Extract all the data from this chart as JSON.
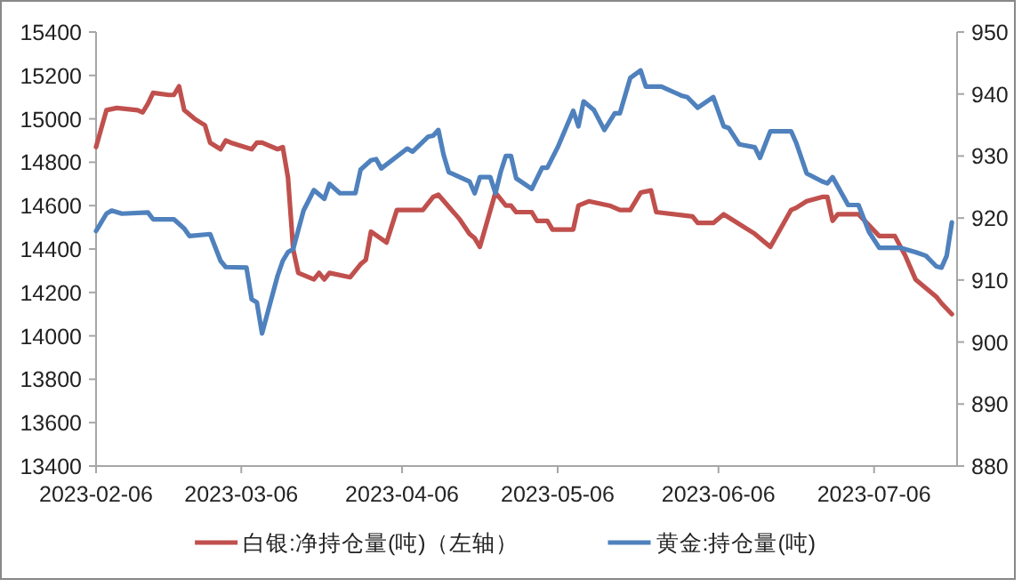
{
  "chart_data": {
    "type": "line",
    "legend": "bottom",
    "grid": false,
    "xlim": [
      "2023-02-06",
      "2023-07-22"
    ],
    "xticks": [
      "2023-02-06",
      "2023-03-06",
      "2023-04-06",
      "2023-05-06",
      "2023-06-06",
      "2023-07-06"
    ],
    "ylim": [
      13400,
      15400
    ],
    "yticks": [
      13400,
      13600,
      13800,
      14000,
      14200,
      14400,
      14600,
      14800,
      15000,
      15200,
      15400
    ],
    "y2lim": [
      880,
      950
    ],
    "y2ticks": [
      880,
      890,
      900,
      910,
      920,
      930,
      940,
      950
    ],
    "series": [
      {
        "name": "白银:净持仓量(吨)（左轴）",
        "color": "#c0504d",
        "x": [
          "2023-02-06",
          "2023-02-08",
          "2023-02-10",
          "2023-02-14",
          "2023-02-15",
          "2023-02-16",
          "2023-02-17",
          "2023-02-20",
          "2023-02-21",
          "2023-02-22",
          "2023-02-23",
          "2023-02-25",
          "2023-02-27",
          "2023-02-28",
          "2023-03-02",
          "2023-03-03",
          "2023-03-04",
          "2023-03-08",
          "2023-03-09",
          "2023-03-10",
          "2023-03-13",
          "2023-03-14",
          "2023-03-15",
          "2023-03-16",
          "2023-03-17",
          "2023-03-20",
          "2023-03-21",
          "2023-03-22",
          "2023-03-23",
          "2023-03-27",
          "2023-03-29",
          "2023-03-30",
          "2023-03-31",
          "2023-04-03",
          "2023-04-05",
          "2023-04-10",
          "2023-04-12",
          "2023-04-13",
          "2023-04-17",
          "2023-04-19",
          "2023-04-20",
          "2023-04-21",
          "2023-04-24",
          "2023-04-26",
          "2023-04-27",
          "2023-04-28",
          "2023-05-01",
          "2023-05-02",
          "2023-05-04",
          "2023-05-05",
          "2023-05-09",
          "2023-05-10",
          "2023-05-12",
          "2023-05-16",
          "2023-05-18",
          "2023-05-20",
          "2023-05-22",
          "2023-05-24",
          "2023-05-25",
          "2023-06-01",
          "2023-06-02",
          "2023-06-05",
          "2023-06-07",
          "2023-06-09",
          "2023-06-13",
          "2023-06-15",
          "2023-06-16",
          "2023-06-20",
          "2023-06-21",
          "2023-06-23",
          "2023-06-26",
          "2023-06-27",
          "2023-06-28",
          "2023-06-29",
          "2023-07-03",
          "2023-07-05",
          "2023-07-07",
          "2023-07-10",
          "2023-07-12",
          "2023-07-14",
          "2023-07-16",
          "2023-07-18",
          "2023-07-19",
          "2023-07-21"
        ],
        "values": [
          14870,
          15040,
          15050,
          15040,
          15030,
          15070,
          15120,
          15110,
          15110,
          15150,
          15040,
          15000,
          14970,
          14890,
          14860,
          14900,
          14890,
          14860,
          14890,
          14890,
          14860,
          14870,
          14730,
          14400,
          14290,
          14260,
          14290,
          14260,
          14290,
          14270,
          14330,
          14350,
          14480,
          14430,
          14580,
          14580,
          14640,
          14650,
          14540,
          14470,
          14450,
          14410,
          14660,
          14600,
          14600,
          14570,
          14570,
          14530,
          14530,
          14490,
          14490,
          14600,
          14620,
          14600,
          14580,
          14580,
          14660,
          14670,
          14570,
          14550,
          14520,
          14520,
          14560,
          14530,
          14470,
          14430,
          14410,
          14580,
          14590,
          14620,
          14640,
          14640,
          14530,
          14560,
          14560,
          14510,
          14460,
          14460,
          14370,
          14260,
          14220,
          14180,
          14150,
          14100
        ]
      },
      {
        "name": "黄金:持仓量(吨)",
        "color": "#4f81bd",
        "axis": "y2",
        "x": [
          "2023-02-06",
          "2023-02-08",
          "2023-02-09",
          "2023-02-11",
          "2023-02-16",
          "2023-02-17",
          "2023-02-21",
          "2023-02-23",
          "2023-02-24",
          "2023-02-28",
          "2023-03-02",
          "2023-03-03",
          "2023-03-07",
          "2023-03-08",
          "2023-03-09",
          "2023-03-10",
          "2023-03-13",
          "2023-03-14",
          "2023-03-15",
          "2023-03-16",
          "2023-03-18",
          "2023-03-20",
          "2023-03-22",
          "2023-03-23",
          "2023-03-25",
          "2023-03-28",
          "2023-03-29",
          "2023-03-31",
          "2023-04-01",
          "2023-04-02",
          "2023-04-07",
          "2023-04-08",
          "2023-04-11",
          "2023-04-12",
          "2023-04-13",
          "2023-04-14",
          "2023-04-15",
          "2023-04-19",
          "2023-04-20",
          "2023-04-21",
          "2023-04-23",
          "2023-04-24",
          "2023-04-25",
          "2023-04-26",
          "2023-04-27",
          "2023-04-28",
          "2023-05-01",
          "2023-05-03",
          "2023-05-04",
          "2023-05-06",
          "2023-05-09",
          "2023-05-10",
          "2023-05-11",
          "2023-05-13",
          "2023-05-15",
          "2023-05-17",
          "2023-05-18",
          "2023-05-20",
          "2023-05-22",
          "2023-05-23",
          "2023-05-26",
          "2023-05-30",
          "2023-05-31",
          "2023-06-02",
          "2023-06-05",
          "2023-06-07",
          "2023-06-08",
          "2023-06-10",
          "2023-06-13",
          "2023-06-14",
          "2023-06-16",
          "2023-06-20",
          "2023-06-21",
          "2023-06-23",
          "2023-06-26",
          "2023-06-27",
          "2023-06-28",
          "2023-07-01",
          "2023-07-03",
          "2023-07-05",
          "2023-07-07",
          "2023-07-11",
          "2023-07-14",
          "2023-07-16",
          "2023-07-18",
          "2023-07-19",
          "2023-07-20",
          "2023-07-21"
        ],
        "values": [
          917.9,
          920.7,
          921.2,
          920.7,
          920.9,
          919.8,
          919.8,
          918.3,
          917.1,
          917.4,
          913.1,
          912.1,
          912.0,
          906.9,
          906.4,
          901.4,
          910.7,
          913.1,
          914.5,
          915.0,
          921.2,
          924.5,
          923.1,
          925.5,
          924.0,
          924.0,
          927.8,
          929.3,
          929.5,
          928.0,
          931.2,
          930.7,
          933.1,
          933.3,
          934.2,
          930.2,
          927.4,
          925.9,
          924.0,
          926.6,
          926.6,
          924.0,
          927.4,
          930.0,
          930.0,
          926.4,
          924.7,
          928.1,
          928.1,
          931.4,
          937.3,
          934.8,
          938.8,
          937.4,
          934.2,
          936.9,
          936.9,
          942.6,
          943.8,
          941.2,
          941.2,
          939.7,
          939.5,
          937.8,
          939.5,
          934.8,
          934.5,
          931.9,
          931.4,
          929.7,
          934.0,
          934.0,
          932.1,
          927.2,
          925.9,
          925.6,
          926.6,
          922.1,
          922.1,
          917.8,
          915.2,
          915.2,
          914.5,
          913.9,
          912.2,
          912.0,
          913.9,
          919.3
        ]
      }
    ]
  }
}
